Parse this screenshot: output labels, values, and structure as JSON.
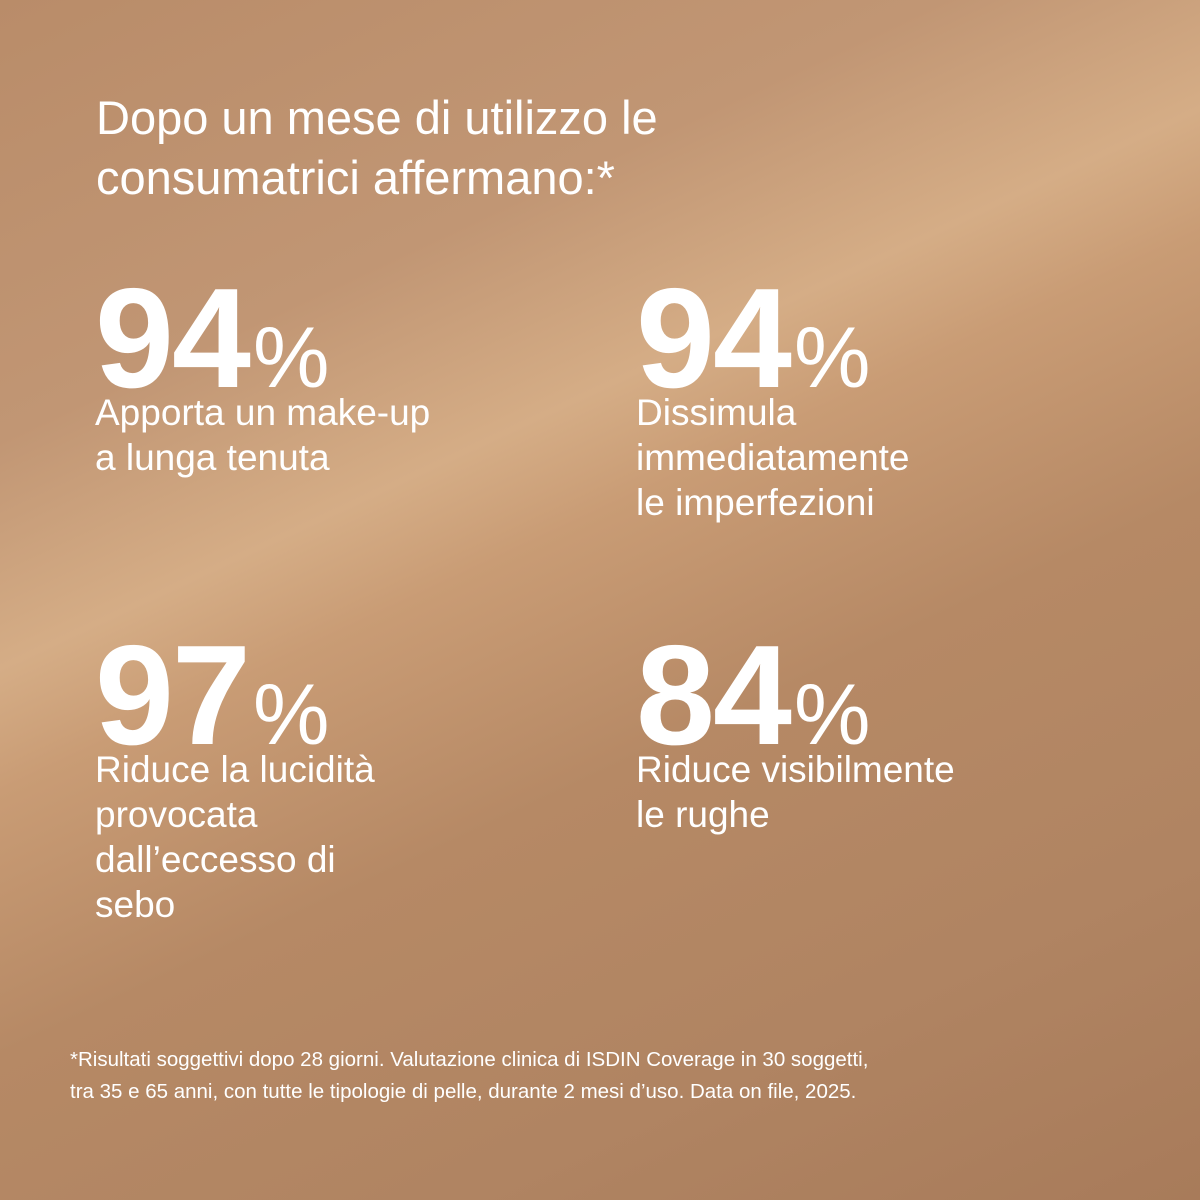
{
  "heading": [
    "Dopo un mese di utilizzo le",
    "consumatrici affermano:*"
  ],
  "stats": [
    {
      "number": "94",
      "unit": "%",
      "lines": [
        "Apporta un make-up",
        "a lunga tenuta"
      ]
    },
    {
      "number": "94",
      "unit": "%",
      "lines": [
        "Dissimula",
        "immediatamente",
        "le imperfezioni"
      ]
    },
    {
      "number": "97",
      "unit": "%",
      "lines": [
        "Riduce la lucidità",
        "provocata",
        "dall’eccesso di",
        "sebo"
      ]
    },
    {
      "number": "84",
      "unit": "%",
      "lines": [
        "Riduce visibilmente",
        "le rughe"
      ]
    }
  ],
  "footnote": [
    "*Risultati soggettivi dopo 28 giorni. Valutazione clinica di ISDIN Coverage in 30 soggetti,",
    "tra 35 e 65 anni, con tutte le tipologie di pelle, durante 2 mesi d’uso. Data on file, 2025."
  ]
}
